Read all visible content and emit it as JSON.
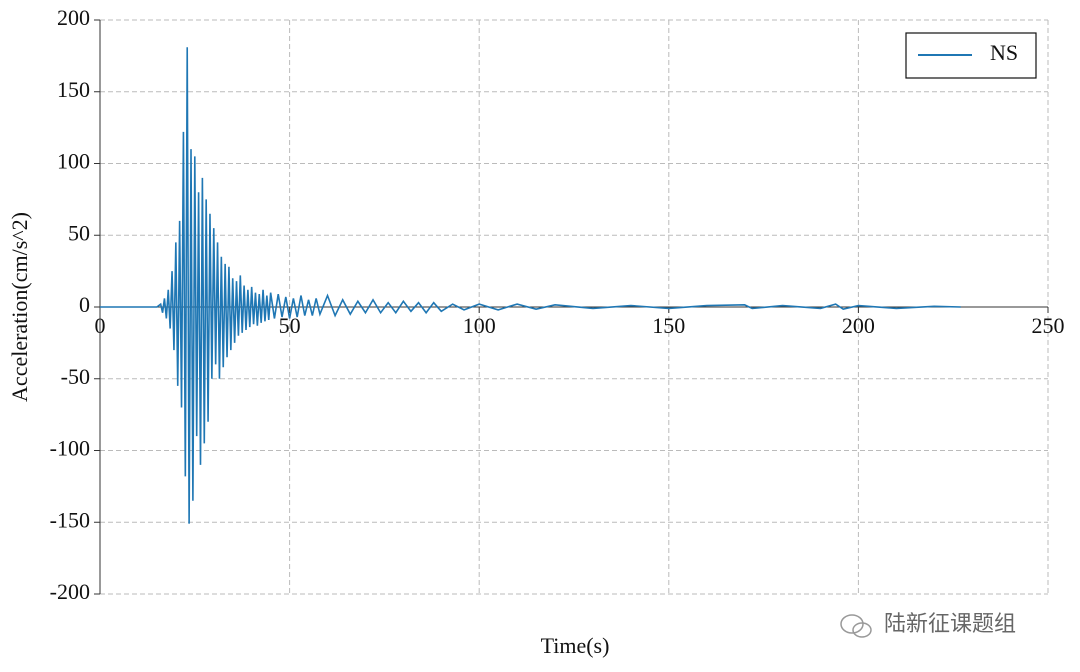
{
  "chart_data": {
    "type": "line",
    "xlabel": "Time(s)",
    "ylabel": "Acceleration(cm/s^2)",
    "x": [
      0,
      15,
      16,
      16.5,
      17,
      17.5,
      18,
      18.5,
      19,
      19.5,
      20,
      20.5,
      21,
      21.5,
      22,
      22.5,
      23,
      23.5,
      24,
      24.5,
      25,
      25.5,
      26,
      26.5,
      27,
      27.5,
      28,
      28.5,
      29,
      29.5,
      30,
      30.5,
      31,
      31.5,
      32,
      32.5,
      33,
      33.5,
      34,
      34.5,
      35,
      35.5,
      36,
      36.5,
      37,
      37.5,
      38,
      38.5,
      39,
      39.5,
      40,
      40.5,
      41,
      41.5,
      42,
      42.5,
      43,
      43.5,
      44,
      44.5,
      45,
      46,
      47,
      48,
      49,
      50,
      51,
      52,
      53,
      54,
      55,
      56,
      57,
      58,
      60,
      62,
      64,
      66,
      68,
      70,
      72,
      74,
      76,
      78,
      80,
      82,
      84,
      86,
      88,
      90,
      93,
      96,
      100,
      105,
      110,
      115,
      120,
      130,
      140,
      150,
      160,
      170,
      172,
      180,
      190,
      194,
      196,
      200,
      210,
      220,
      227
    ],
    "series": [
      {
        "name": "NS",
        "color": "#1f77b4",
        "values": [
          0,
          0,
          2,
          -4,
          6,
          -8,
          12,
          -15,
          25,
          -30,
          45,
          -55,
          60,
          -70,
          122,
          -118,
          181,
          -151,
          110,
          -135,
          105,
          -90,
          80,
          -110,
          90,
          -95,
          75,
          -80,
          65,
          -50,
          55,
          -40,
          45,
          -50,
          35,
          -42,
          30,
          -35,
          28,
          -30,
          20,
          -25,
          18,
          -20,
          22,
          -18,
          15,
          -16,
          12,
          -14,
          14,
          -12,
          10,
          -13,
          9,
          -11,
          12,
          -10,
          8,
          -9,
          10,
          -8,
          9,
          -7,
          7,
          -8,
          6,
          -7,
          8,
          -6,
          5,
          -6,
          6,
          -5,
          8,
          -6,
          5,
          -5,
          4,
          -4,
          5,
          -4,
          3,
          -4,
          4,
          -3,
          3,
          -4,
          3,
          -3,
          2,
          -2,
          2,
          -2,
          2,
          -1.5,
          1.5,
          -1,
          1,
          -1,
          1,
          1.5,
          -1,
          1,
          -1,
          2,
          -1.5,
          1,
          -1,
          0.5,
          0
        ]
      }
    ],
    "xlim": [
      0,
      250
    ],
    "xticks": [
      0,
      50,
      100,
      150,
      200,
      250
    ],
    "ylim": [
      -200,
      200
    ],
    "yticks": [
      -200,
      -150,
      -100,
      -50,
      0,
      50,
      100,
      150,
      200
    ],
    "grid": true,
    "legend": "upper right",
    "watermark": "陆新征课题组"
  }
}
